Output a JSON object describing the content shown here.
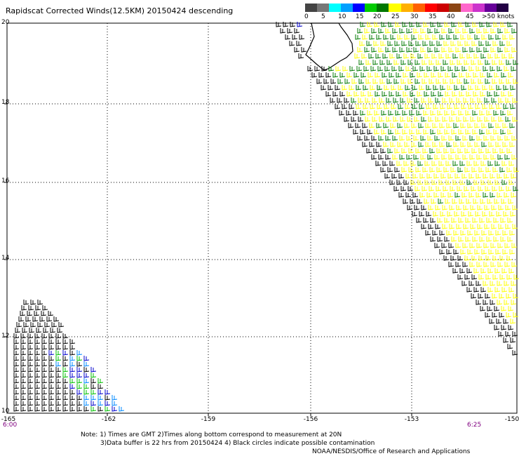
{
  "title": "Rapidscat Corrected Winds(12.5KM) 20150424 descending",
  "colorbar": {
    "labels": [
      "0",
      "5",
      "10",
      "15",
      "20",
      "25",
      "30",
      "35",
      "40",
      "45",
      ">50 knots"
    ],
    "colors": [
      "#444444",
      "#777777",
      "#00ffff",
      "#00a0ff",
      "#0000ff",
      "#00cc00",
      "#007700",
      "#ffff00",
      "#ffb000",
      "#ff6000",
      "#ff0000",
      "#cc0000",
      "#8b4513",
      "#ff66cc",
      "#cc33cc",
      "#660099",
      "#220044"
    ]
  },
  "axes": {
    "y_ticks": [
      "20",
      "18",
      "16",
      "14",
      "12",
      "10"
    ],
    "x_ticks": [
      "-165",
      "-162",
      "-159",
      "-156",
      "-153",
      "-150"
    ],
    "lat_range": [
      10,
      20
    ],
    "lon_range": [
      -165,
      -150
    ]
  },
  "time_labels": {
    "left": "6:00",
    "right": "6:25"
  },
  "notes": [
    "Note: 1) Times are GMT 2)Times along bottom correspond to measurement at 20N",
    "3)Data buffer is 22 hrs from 20150424 4) Black circles indicate possible contamination"
  ],
  "credit": "NOAA/NESDIS/Office of Research and Applications",
  "palette": {
    "green": "#007a00",
    "yellow": "#ffff00",
    "black": "#000000",
    "blue": "#0000cc",
    "lightblue": "#0088ff",
    "brightgreen": "#00c000"
  }
}
